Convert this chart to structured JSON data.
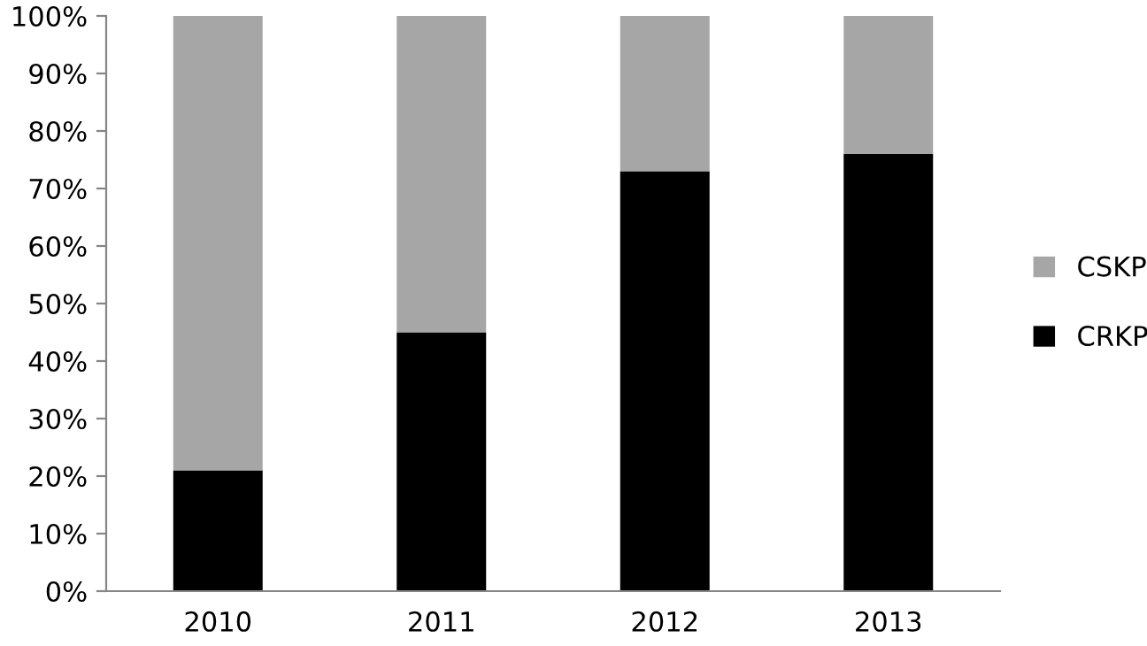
{
  "chart_data": {
    "type": "bar",
    "stacked": true,
    "categories": [
      "2010",
      "2011",
      "2012",
      "2013"
    ],
    "series": [
      {
        "name": "CRKP",
        "color": "#000000",
        "values": [
          21,
          45,
          73,
          76
        ]
      },
      {
        "name": "CSKP",
        "color": "#a6a6a6",
        "values": [
          79,
          55,
          27,
          24
        ]
      }
    ],
    "ylim": [
      0,
      100
    ],
    "yticks": [
      {
        "value": 0,
        "label": "0%"
      },
      {
        "value": 10,
        "label": "10%"
      },
      {
        "value": 20,
        "label": "20%"
      },
      {
        "value": 30,
        "label": "30%"
      },
      {
        "value": 40,
        "label": "40%"
      },
      {
        "value": 50,
        "label": "50%"
      },
      {
        "value": 60,
        "label": "60%"
      },
      {
        "value": 70,
        "label": "70%"
      },
      {
        "value": 80,
        "label": "80%"
      },
      {
        "value": 90,
        "label": "90%"
      },
      {
        "value": 100,
        "label": "100%"
      }
    ],
    "grid": false,
    "legend": "right"
  }
}
